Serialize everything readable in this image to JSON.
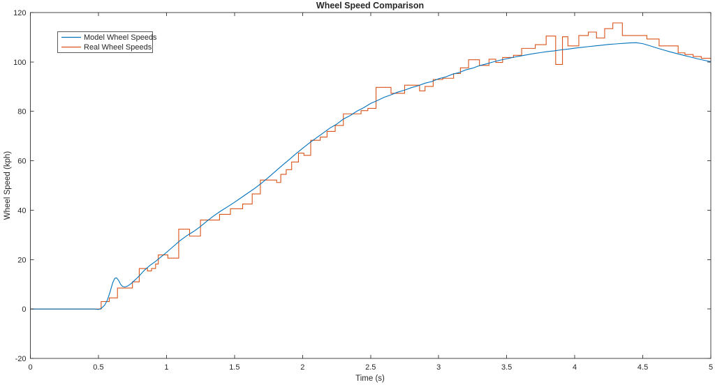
{
  "chart_data": {
    "type": "line",
    "title": "Wheel Speed Comparison",
    "xlabel": "Time (s)",
    "ylabel": "Wheel Speed (kph)",
    "xlim": [
      0,
      5
    ],
    "ylim": [
      -20,
      120
    ],
    "xticks": [
      0,
      0.5,
      1,
      1.5,
      2,
      2.5,
      3,
      3.5,
      4,
      4.5,
      5
    ],
    "xtick_labels": [
      "0",
      "0.5",
      "1",
      "1.5",
      "2",
      "2.5",
      "3",
      "3.5",
      "4",
      "4.5",
      "5"
    ],
    "yticks": [
      -20,
      0,
      20,
      40,
      60,
      80,
      100,
      120
    ],
    "ytick_labels": [
      "-20",
      "0",
      "20",
      "40",
      "60",
      "80",
      "100",
      "120"
    ],
    "grid": false,
    "box": true,
    "tick_direction": "in",
    "axis_color": "#262626",
    "background_color": "#ffffff",
    "legend": {
      "position": "top-left",
      "entries": [
        {
          "label": "Model Wheel Speeds",
          "color": "#0072BD"
        },
        {
          "label": "Real Wheel Speeds",
          "color": "#D95319"
        }
      ]
    },
    "series": [
      {
        "name": "Model Wheel Speeds",
        "color": "#0072BD",
        "style": "line",
        "points": [
          [
            0,
            0
          ],
          [
            0.1,
            0
          ],
          [
            0.2,
            0
          ],
          [
            0.3,
            0
          ],
          [
            0.4,
            0
          ],
          [
            0.47,
            0
          ],
          [
            0.5,
            -0.2
          ],
          [
            0.52,
            0.2
          ],
          [
            0.545,
            1.5
          ],
          [
            0.565,
            3.5
          ],
          [
            0.585,
            6.8
          ],
          [
            0.605,
            10.6
          ],
          [
            0.62,
            12.4
          ],
          [
            0.633,
            12.6
          ],
          [
            0.648,
            11.6
          ],
          [
            0.663,
            10.0
          ],
          [
            0.678,
            9.1
          ],
          [
            0.695,
            8.9
          ],
          [
            0.715,
            9.3
          ],
          [
            0.74,
            10.3
          ],
          [
            0.77,
            11.8
          ],
          [
            0.8,
            13.4
          ],
          [
            0.84,
            15.8
          ],
          [
            0.88,
            17.7
          ],
          [
            0.92,
            19.3
          ],
          [
            0.96,
            21.1
          ],
          [
            1.0,
            22.9
          ],
          [
            1.05,
            25.3
          ],
          [
            1.1,
            27.7
          ],
          [
            1.15,
            29.7
          ],
          [
            1.2,
            31.4
          ],
          [
            1.25,
            33.4
          ],
          [
            1.3,
            35.7
          ],
          [
            1.35,
            37.8
          ],
          [
            1.4,
            39.7
          ],
          [
            1.45,
            41.4
          ],
          [
            1.5,
            43.2
          ],
          [
            1.55,
            45.1
          ],
          [
            1.6,
            47.0
          ],
          [
            1.65,
            48.9
          ],
          [
            1.7,
            51.0
          ],
          [
            1.75,
            53.3
          ],
          [
            1.8,
            55.7
          ],
          [
            1.85,
            58.1
          ],
          [
            1.9,
            60.4
          ],
          [
            1.95,
            62.8
          ],
          [
            2.0,
            65.0
          ],
          [
            2.05,
            67.2
          ],
          [
            2.1,
            69.2
          ],
          [
            2.15,
            71.2
          ],
          [
            2.2,
            73.2
          ],
          [
            2.25,
            74.8
          ],
          [
            2.3,
            76.9
          ],
          [
            2.35,
            78.3
          ],
          [
            2.4,
            80.1
          ],
          [
            2.45,
            81.5
          ],
          [
            2.5,
            83.2
          ],
          [
            2.55,
            84.4
          ],
          [
            2.6,
            85.7
          ],
          [
            2.65,
            86.7
          ],
          [
            2.7,
            87.8
          ],
          [
            2.75,
            88.6
          ],
          [
            2.8,
            89.6
          ],
          [
            2.85,
            90.4
          ],
          [
            2.9,
            91.4
          ],
          [
            2.95,
            92.1
          ],
          [
            3.0,
            93.2
          ],
          [
            3.05,
            93.9
          ],
          [
            3.1,
            95.0
          ],
          [
            3.15,
            95.7
          ],
          [
            3.2,
            96.8
          ],
          [
            3.25,
            97.5
          ],
          [
            3.3,
            98.5
          ],
          [
            3.35,
            99.2
          ],
          [
            3.4,
            100.0
          ],
          [
            3.45,
            100.7
          ],
          [
            3.5,
            101.3
          ],
          [
            3.55,
            101.9
          ],
          [
            3.6,
            102.4
          ],
          [
            3.65,
            102.9
          ],
          [
            3.7,
            103.4
          ],
          [
            3.75,
            103.8
          ],
          [
            3.8,
            104.2
          ],
          [
            3.85,
            104.5
          ],
          [
            3.9,
            104.9
          ],
          [
            3.95,
            105.2
          ],
          [
            4.0,
            105.6
          ],
          [
            4.05,
            105.9
          ],
          [
            4.1,
            106.2
          ],
          [
            4.15,
            106.5
          ],
          [
            4.2,
            106.8
          ],
          [
            4.25,
            107.1
          ],
          [
            4.3,
            107.3
          ],
          [
            4.35,
            107.5
          ],
          [
            4.4,
            107.7
          ],
          [
            4.45,
            107.8
          ],
          [
            4.5,
            107.4
          ],
          [
            4.55,
            106.6
          ],
          [
            4.6,
            105.7
          ],
          [
            4.65,
            104.9
          ],
          [
            4.7,
            104.1
          ],
          [
            4.75,
            103.4
          ],
          [
            4.8,
            102.7
          ],
          [
            4.85,
            102.0
          ],
          [
            4.9,
            101.3
          ],
          [
            4.95,
            100.7
          ],
          [
            5.0,
            100.1
          ]
        ]
      },
      {
        "name": "Real Wheel Speeds",
        "color": "#D95319",
        "style": "step-post",
        "points": [
          [
            0,
            0
          ],
          [
            0.52,
            3
          ],
          [
            0.58,
            4.5
          ],
          [
            0.64,
            8.5
          ],
          [
            0.75,
            11
          ],
          [
            0.8,
            16.4
          ],
          [
            0.86,
            15.4
          ],
          [
            0.89,
            16.4
          ],
          [
            0.92,
            18.2
          ],
          [
            0.94,
            21.9
          ],
          [
            1.01,
            20.6
          ],
          [
            1.09,
            32.3
          ],
          [
            1.17,
            29.5
          ],
          [
            1.25,
            36
          ],
          [
            1.39,
            38.3
          ],
          [
            1.47,
            40.6
          ],
          [
            1.56,
            42.5
          ],
          [
            1.63,
            46.6
          ],
          [
            1.69,
            52.2
          ],
          [
            1.81,
            51.2
          ],
          [
            1.84,
            54.5
          ],
          [
            1.88,
            56.4
          ],
          [
            1.92,
            59.5
          ],
          [
            1.97,
            63.1
          ],
          [
            2.01,
            62.2
          ],
          [
            2.06,
            68.3
          ],
          [
            2.13,
            69.6
          ],
          [
            2.18,
            71.9
          ],
          [
            2.24,
            74.3
          ],
          [
            2.3,
            79.0
          ],
          [
            2.43,
            80.3
          ],
          [
            2.48,
            81.2
          ],
          [
            2.54,
            89.7
          ],
          [
            2.65,
            87.3
          ],
          [
            2.75,
            90.6
          ],
          [
            2.86,
            88.3
          ],
          [
            2.9,
            90.1
          ],
          [
            2.96,
            92.9
          ],
          [
            3.03,
            93.4
          ],
          [
            3.11,
            95.3
          ],
          [
            3.16,
            97.6
          ],
          [
            3.22,
            100.9
          ],
          [
            3.3,
            98.6
          ],
          [
            3.37,
            101.1
          ],
          [
            3.42,
            99.8
          ],
          [
            3.47,
            101.8
          ],
          [
            3.55,
            102.7
          ],
          [
            3.61,
            105.5
          ],
          [
            3.71,
            107.0
          ],
          [
            3.79,
            110.5
          ],
          [
            3.86,
            99.0
          ],
          [
            3.91,
            110.2
          ],
          [
            3.95,
            106.5
          ],
          [
            4.03,
            110.7
          ],
          [
            4.1,
            112.1
          ],
          [
            4.16,
            109.7
          ],
          [
            4.22,
            113.5
          ],
          [
            4.28,
            115.8
          ],
          [
            4.35,
            110.7
          ],
          [
            4.53,
            109.3
          ],
          [
            4.62,
            106.5
          ],
          [
            4.76,
            103.7
          ],
          [
            4.81,
            103.0
          ],
          [
            4.87,
            102.2
          ],
          [
            4.93,
            101.5
          ],
          [
            5.0,
            101.2
          ]
        ]
      }
    ]
  }
}
